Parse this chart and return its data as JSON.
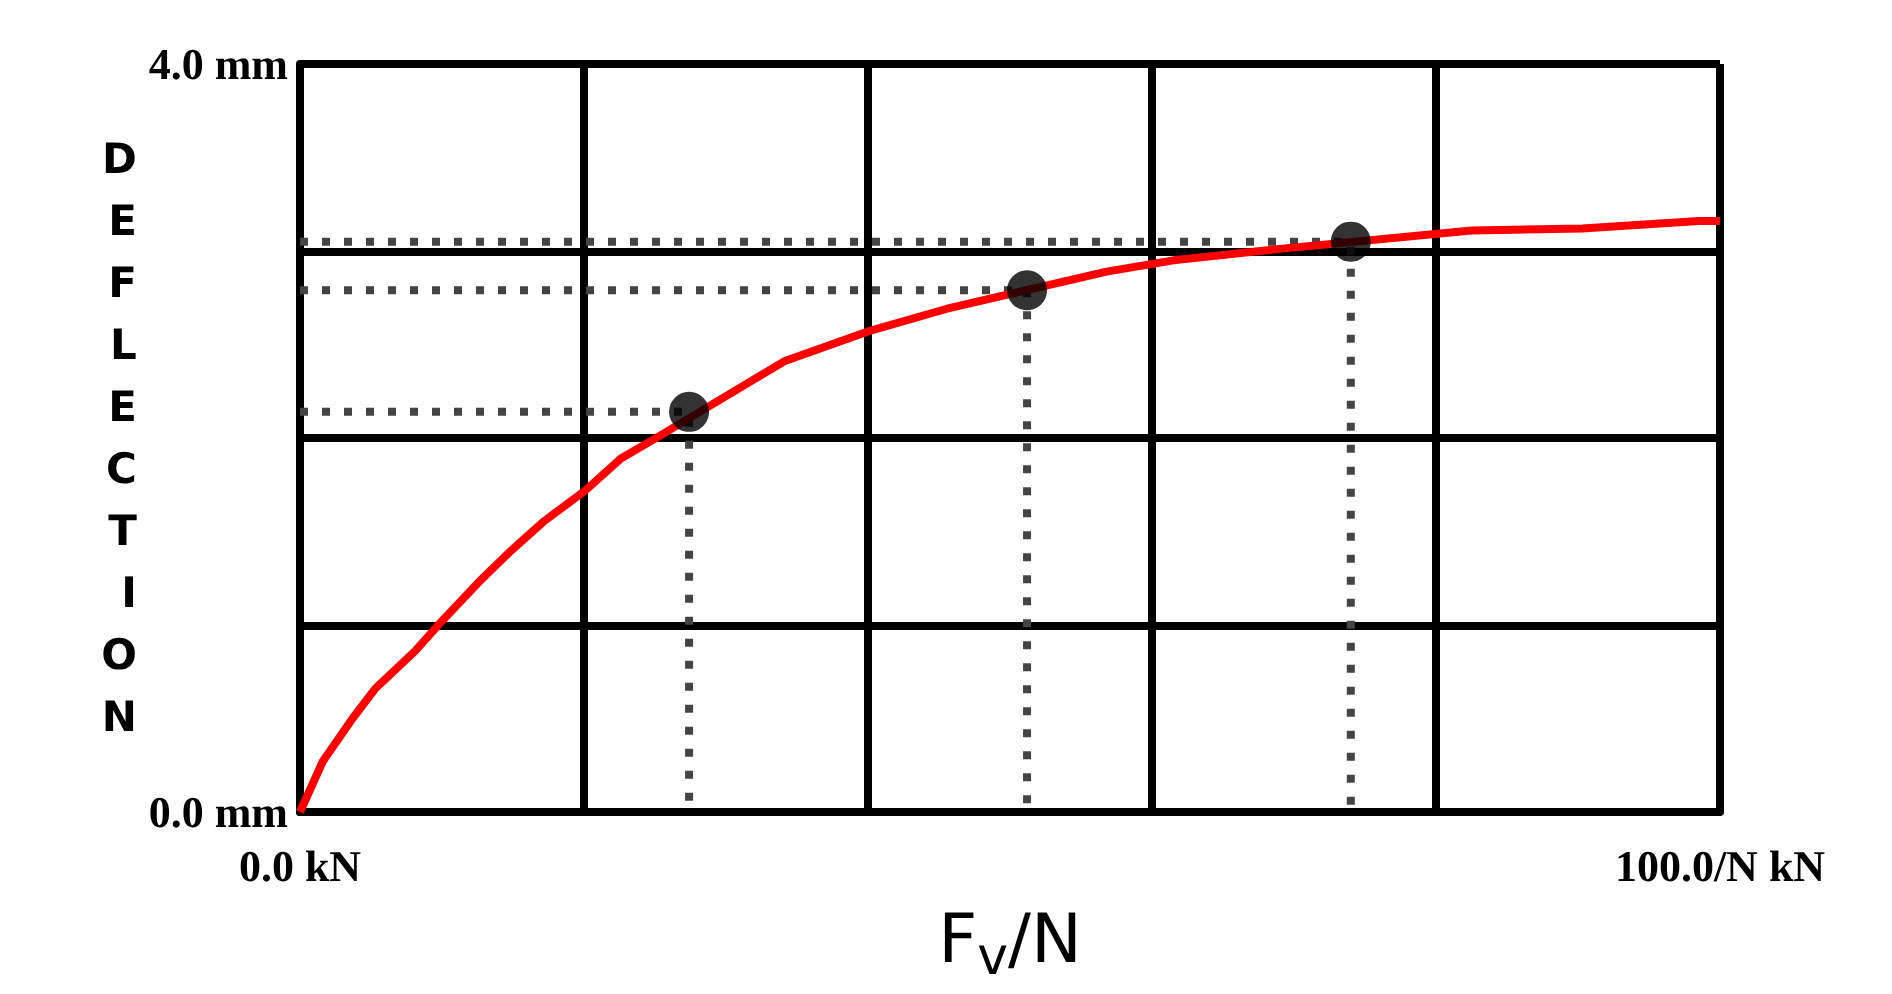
{
  "chart_data": {
    "type": "line",
    "xlabel": "F$_{v}$/N",
    "ylabel": "DEFLECTION",
    "xlim": [
      0,
      100
    ],
    "ylim": [
      0,
      4
    ],
    "xticks": [
      {
        "value": 0,
        "label": "0.0 kN"
      },
      {
        "value": 20,
        "label": null
      },
      {
        "value": 40,
        "label": null
      },
      {
        "value": 60,
        "label": null
      },
      {
        "value": 80,
        "label": null
      },
      {
        "value": 100,
        "label": "100.0/N kN"
      }
    ],
    "yticks": [
      {
        "value": 0,
        "label": "0.0 mm"
      },
      {
        "value": 1,
        "label": null
      },
      {
        "value": 2,
        "label": null
      },
      {
        "value": 3,
        "label": null
      },
      {
        "value": 4,
        "label": "4.0 mm"
      }
    ],
    "grid": true,
    "series": [
      {
        "color": "#ff0000",
        "marker": "none",
        "x": [
          0,
          1.6,
          3.7,
          5.3,
          8.1,
          10.1,
          12.6,
          14.9,
          17.1,
          20.1,
          22.6,
          25.3,
          34.1,
          40,
          45.5,
          56.8,
          61.5,
          68.8,
          82.5,
          90.3,
          98.5,
          100
        ],
        "values": [
          0,
          0.27,
          0.5,
          0.66,
          0.86,
          1.03,
          1.23,
          1.4,
          1.55,
          1.72,
          1.89,
          2.01,
          2.41,
          2.57,
          2.69,
          2.89,
          2.95,
          3.01,
          3.11,
          3.12,
          3.16,
          3.16
        ]
      },
      {
        "color": "#444444",
        "marker": "none",
        "line_style": "dotted",
        "x": [
          0,
          27.4,
          27.4
        ],
        "values": [
          2.14,
          2.14,
          0
        ]
      },
      {
        "color": "#444444",
        "marker": "none",
        "line_style": "dotted",
        "x": [
          0,
          51.2,
          51.2
        ],
        "values": [
          2.79,
          2.79,
          0
        ]
      },
      {
        "color": "#444444",
        "marker": "none",
        "line_style": "dotted",
        "x": [
          0,
          74,
          74
        ],
        "values": [
          3.05,
          3.05,
          0
        ]
      },
      {
        "type": "scatter",
        "color": "#000000",
        "marker": "circle",
        "x": [
          27.4,
          51.2,
          74
        ],
        "values": [
          2.14,
          2.79,
          3.05
        ]
      }
    ]
  }
}
